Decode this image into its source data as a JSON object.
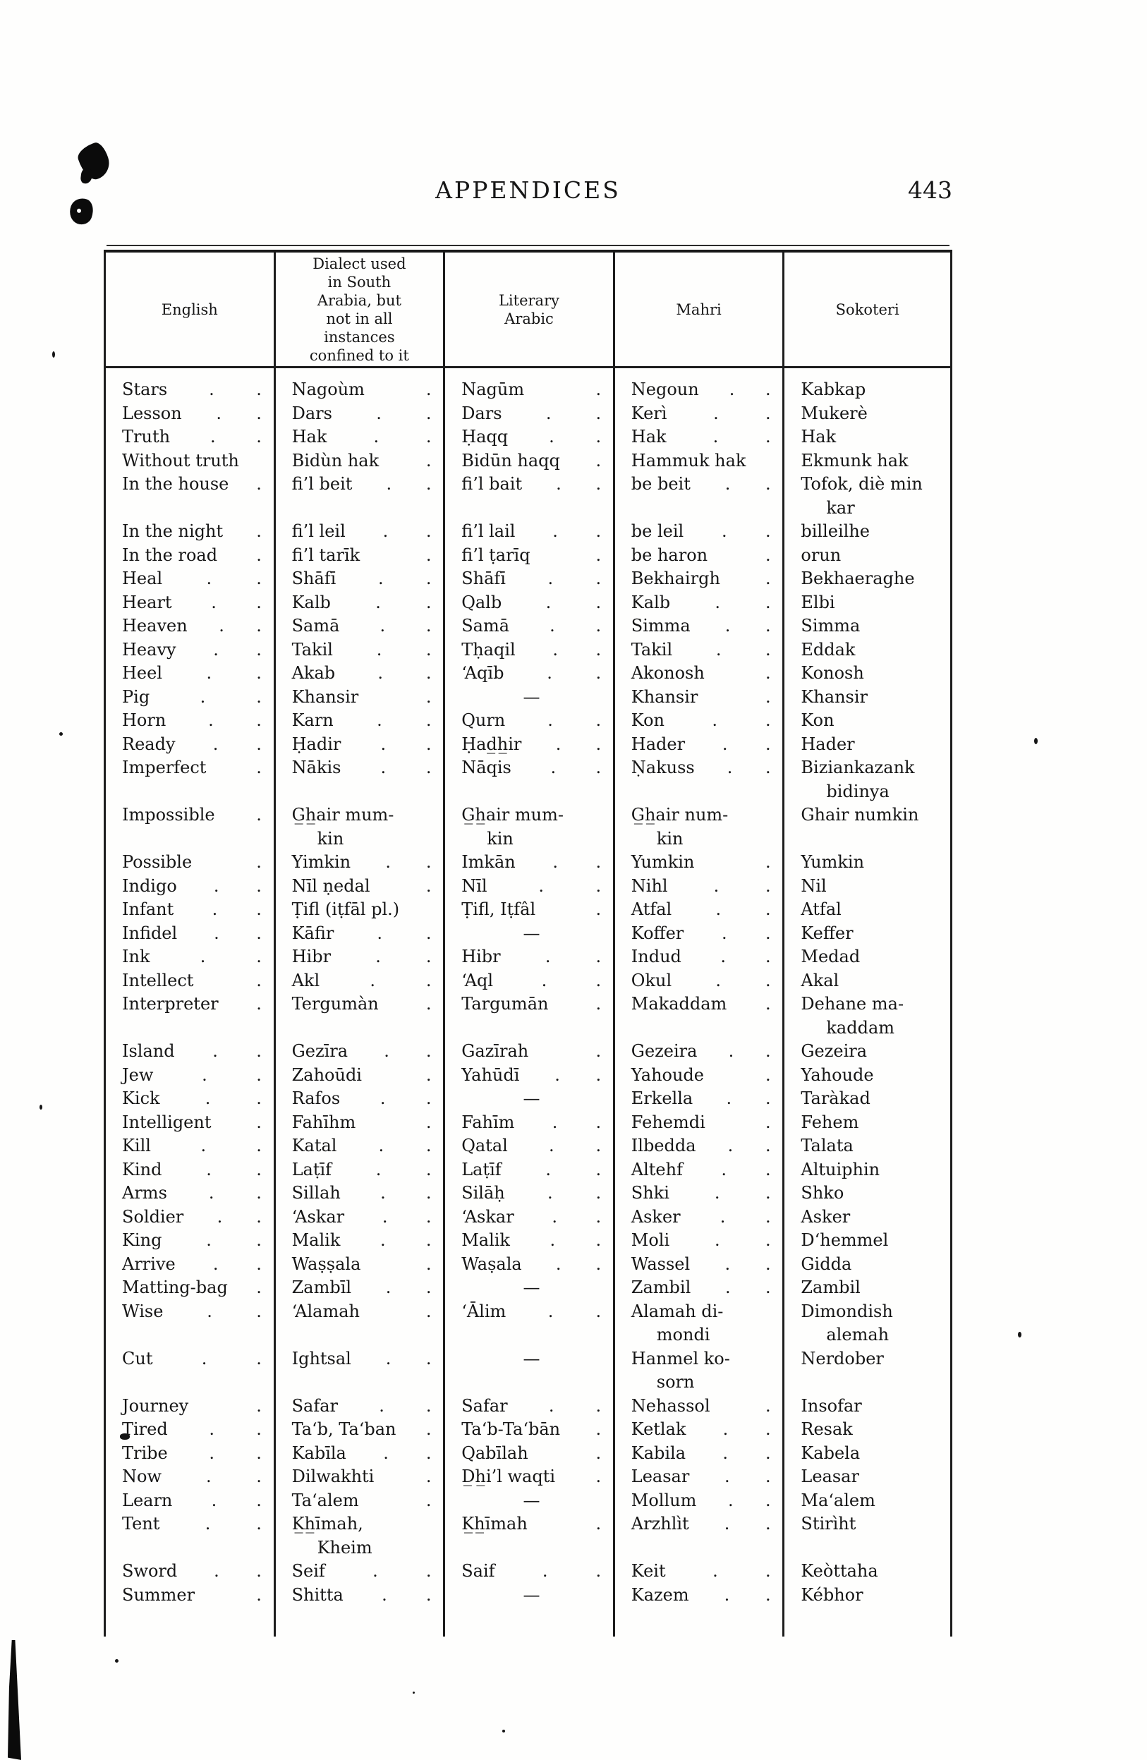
{
  "page": {
    "title": "APPENDICES",
    "page_number": "443"
  },
  "table": {
    "headers": [
      "English",
      "Dialect used in South Arabia, but not in all instances confined to it",
      "Literary Arabic",
      "Mahri",
      "Sokoteri"
    ],
    "rows": [
      [
        {
          "t": "Stars",
          "d": 2
        },
        {
          "t": "Nagoùm",
          "d": 1
        },
        {
          "t": "Nagūm",
          "d": 1
        },
        {
          "t": "Negoun",
          "d": 2
        },
        {
          "t": "Kabkap"
        }
      ],
      [
        {
          "t": "Lesson",
          "d": 2
        },
        {
          "t": "Dars",
          "d": 2
        },
        {
          "t": "Dars",
          "d": 2
        },
        {
          "t": "Kerì",
          "d": 2
        },
        {
          "t": "Mukerè"
        }
      ],
      [
        {
          "t": "Truth",
          "d": 2
        },
        {
          "t": "Hak",
          "d": 2
        },
        {
          "t": "Ḥaqq",
          "d": 2
        },
        {
          "t": "Hak",
          "d": 2
        },
        {
          "t": "Hak"
        }
      ],
      [
        {
          "t": "Without truth"
        },
        {
          "t": "Bidùn hak",
          "d": 1
        },
        {
          "t": "Bidūn haqq",
          "d": 1
        },
        {
          "t": "Hammuk hak"
        },
        {
          "t": "Ekmunk hak"
        }
      ],
      [
        {
          "t": "In the house",
          "d": 1
        },
        {
          "t": "fi’l beit",
          "d": 2
        },
        {
          "t": "fi’l bait",
          "d": 2
        },
        {
          "t": "be beit",
          "d": 2
        },
        {
          "t": "Tofok, diè min",
          "w": "kar"
        }
      ],
      [
        {
          "t": "In the night",
          "d": 1
        },
        {
          "t": "fi’l leil",
          "d": 2
        },
        {
          "t": "fi’l lail",
          "d": 2
        },
        {
          "t": "be leil",
          "d": 2
        },
        {
          "t": "billeilhe"
        }
      ],
      [
        {
          "t": "In the road",
          "d": 1
        },
        {
          "t": "fi’l tarīk",
          "d": 1
        },
        {
          "t": "fi’l ṭarīq",
          "d": 1
        },
        {
          "t": "be haron",
          "d": 1
        },
        {
          "t": "orun"
        }
      ],
      [
        {
          "t": "Heal",
          "d": 2
        },
        {
          "t": "Shāfī",
          "d": 2
        },
        {
          "t": "Shāfī",
          "d": 2
        },
        {
          "t": "Bekhairgh",
          "d": 1
        },
        {
          "t": "Bekhaeraghe"
        }
      ],
      [
        {
          "t": "Heart",
          "d": 2
        },
        {
          "t": "Kalb",
          "d": 2
        },
        {
          "t": "Qalb",
          "d": 2
        },
        {
          "t": "Kalb",
          "d": 2
        },
        {
          "t": "Elbi"
        }
      ],
      [
        {
          "t": "Heaven",
          "d": 2
        },
        {
          "t": "Samā",
          "d": 2
        },
        {
          "t": "Samā",
          "d": 2
        },
        {
          "t": "Simma",
          "d": 2
        },
        {
          "t": "Simma"
        }
      ],
      [
        {
          "t": "Heavy",
          "d": 2
        },
        {
          "t": "Takil",
          "d": 2
        },
        {
          "t": "Tḥaqil",
          "d": 2
        },
        {
          "t": "Takil",
          "d": 2
        },
        {
          "t": "Eddak"
        }
      ],
      [
        {
          "t": "Heel",
          "d": 2
        },
        {
          "t": "Akab",
          "d": 2
        },
        {
          "t": "‘Aqīb",
          "d": 2
        },
        {
          "t": "Akonosh",
          "d": 1
        },
        {
          "t": "Konosh"
        }
      ],
      [
        {
          "t": "Pig",
          "d": 2
        },
        {
          "t": "Khansir",
          "d": 1
        },
        {
          "t": "—",
          "c": 1
        },
        {
          "t": "Khansir",
          "d": 1
        },
        {
          "t": "Khansir"
        }
      ],
      [
        {
          "t": "Horn",
          "d": 2
        },
        {
          "t": "Karn",
          "d": 2
        },
        {
          "t": "Qurn",
          "d": 2
        },
        {
          "t": "Kon",
          "d": 2
        },
        {
          "t": "Kon"
        }
      ],
      [
        {
          "t": "Ready",
          "d": 2
        },
        {
          "t": "Ḥadir",
          "d": 2
        },
        {
          "t": "Ḥad̲h̲ir",
          "d": 2
        },
        {
          "t": "Hader",
          "d": 2
        },
        {
          "t": "Hader"
        }
      ],
      [
        {
          "t": "Imperfect",
          "d": 1
        },
        {
          "t": "Nākis",
          "d": 2
        },
        {
          "t": "Nāqis",
          "d": 2
        },
        {
          "t": "Ṇakuss",
          "d": 2
        },
        {
          "t": "Biziankazank",
          "w": "bidinya"
        }
      ],
      [
        {
          "t": "Impossible",
          "d": 1
        },
        {
          "t": "G̲h̲air mum-",
          "w": "kin"
        },
        {
          "t": "G̲h̲air mum-",
          "w": "kin"
        },
        {
          "t": "G̲h̲air num-",
          "w": "kin"
        },
        {
          "t": "Ghair numkin"
        }
      ],
      [
        {
          "t": "Possible",
          "d": 1
        },
        {
          "t": "Yimkin",
          "d": 2
        },
        {
          "t": "Imkān",
          "d": 2
        },
        {
          "t": "Yumkin",
          "d": 1
        },
        {
          "t": "Yumkin"
        }
      ],
      [
        {
          "t": "Indigo",
          "d": 2
        },
        {
          "t": "Nīl ṇedal",
          "d": 1
        },
        {
          "t": "Nīl",
          "d": 2
        },
        {
          "t": "Nihl",
          "d": 2
        },
        {
          "t": "Nil"
        }
      ],
      [
        {
          "t": "Infant",
          "d": 2
        },
        {
          "t": "Ṭifl (iṭfāl pl.)"
        },
        {
          "t": "Ṭifl, Iṭfâl",
          "d": 1
        },
        {
          "t": "Atfal",
          "d": 2
        },
        {
          "t": "Atfal"
        }
      ],
      [
        {
          "t": "Infidel",
          "d": 2
        },
        {
          "t": "Kāfir",
          "d": 2
        },
        {
          "t": "—",
          "c": 1
        },
        {
          "t": "Koffer",
          "d": 2
        },
        {
          "t": "Keffer"
        }
      ],
      [
        {
          "t": "Ink",
          "d": 2
        },
        {
          "t": "Hibr",
          "d": 2
        },
        {
          "t": "Hibr",
          "d": 2
        },
        {
          "t": "Indud",
          "d": 2
        },
        {
          "t": "Medad"
        }
      ],
      [
        {
          "t": "Intellect",
          "d": 1
        },
        {
          "t": "Akl",
          "d": 2
        },
        {
          "t": "‘Aql",
          "d": 2
        },
        {
          "t": "Okul",
          "d": 2
        },
        {
          "t": "Akal"
        }
      ],
      [
        {
          "t": "Interpreter",
          "d": 1
        },
        {
          "t": "Tergumàn",
          "d": 1
        },
        {
          "t": "Targumān",
          "d": 1
        },
        {
          "t": "Makaddam",
          "d": 1
        },
        {
          "t": "Dehane ma-",
          "w": "kaddam"
        }
      ],
      [
        {
          "t": "Island",
          "d": 2
        },
        {
          "t": "Gezīra",
          "d": 2
        },
        {
          "t": "Gazīrah",
          "d": 1
        },
        {
          "t": "Gezeira",
          "d": 2
        },
        {
          "t": "Gezeira"
        }
      ],
      [
        {
          "t": "Jew",
          "d": 2
        },
        {
          "t": "Zahoūdi",
          "d": 1
        },
        {
          "t": "Yahūdī",
          "d": 2
        },
        {
          "t": "Yahoude",
          "d": 1
        },
        {
          "t": "Yahoude"
        }
      ],
      [
        {
          "t": "Kick",
          "d": 2
        },
        {
          "t": "Rafos",
          "d": 2
        },
        {
          "t": "—",
          "c": 1
        },
        {
          "t": "Erkella",
          "d": 2
        },
        {
          "t": "Taràkad"
        }
      ],
      [
        {
          "t": "Intelligent",
          "d": 1
        },
        {
          "t": "Fahīhm",
          "d": 1
        },
        {
          "t": "Fahīm",
          "d": 2
        },
        {
          "t": "Fehemdi",
          "d": 1
        },
        {
          "t": "Fehem"
        }
      ],
      [
        {
          "t": "Kill",
          "d": 2
        },
        {
          "t": "Katal",
          "d": 2
        },
        {
          "t": "Qatal",
          "d": 2
        },
        {
          "t": "Ilbedda",
          "d": 2
        },
        {
          "t": "Talata"
        }
      ],
      [
        {
          "t": "Kind",
          "d": 2
        },
        {
          "t": "Laṭīf",
          "d": 2
        },
        {
          "t": "Laṭīf",
          "d": 2
        },
        {
          "t": "Altehf",
          "d": 2
        },
        {
          "t": "Altuiphin"
        }
      ],
      [
        {
          "t": "Arms",
          "d": 2
        },
        {
          "t": "Sillah",
          "d": 2
        },
        {
          "t": "Silāḥ",
          "d": 2
        },
        {
          "t": "Shki",
          "d": 2
        },
        {
          "t": "Shko"
        }
      ],
      [
        {
          "t": "Soldier",
          "d": 2
        },
        {
          "t": "‘Askar",
          "d": 2
        },
        {
          "t": "‘Askar",
          "d": 2
        },
        {
          "t": "Asker",
          "d": 2
        },
        {
          "t": "Asker"
        }
      ],
      [
        {
          "t": "King",
          "d": 2
        },
        {
          "t": "Malik",
          "d": 2
        },
        {
          "t": "Malik",
          "d": 2
        },
        {
          "t": "Moli",
          "d": 2
        },
        {
          "t": "D‘hemmel"
        }
      ],
      [
        {
          "t": "Arrive",
          "d": 2
        },
        {
          "t": "Waṣṣala",
          "d": 1
        },
        {
          "t": "Waṣala",
          "d": 2
        },
        {
          "t": "Wassel",
          "d": 2
        },
        {
          "t": "Gidda"
        }
      ],
      [
        {
          "t": "Matting-bag",
          "d": 1
        },
        {
          "t": "Zambīl",
          "d": 2
        },
        {
          "t": "—",
          "c": 1
        },
        {
          "t": "Zambil",
          "d": 2
        },
        {
          "t": "Zambil"
        }
      ],
      [
        {
          "t": "Wise",
          "d": 2
        },
        {
          "t": "‘Alamah",
          "d": 1
        },
        {
          "t": "‘Ālim",
          "d": 2
        },
        {
          "t": "Alamah di-",
          "w": "mondi"
        },
        {
          "t": "Dimondish",
          "w": "alemah"
        }
      ],
      [
        {
          "t": "Cut",
          "d": 2
        },
        {
          "t": "Ightsal",
          "d": 2
        },
        {
          "t": "—",
          "c": 1
        },
        {
          "t": "Hanmel ko-",
          "w": "sorn"
        },
        {
          "t": "Nerdober"
        }
      ],
      [
        {
          "t": "Journey",
          "d": 1
        },
        {
          "t": "Safar",
          "d": 2
        },
        {
          "t": "Safar",
          "d": 2
        },
        {
          "t": "Nehassol",
          "d": 1
        },
        {
          "t": "Insofar"
        }
      ],
      [
        {
          "t": "Tired",
          "d": 2
        },
        {
          "t": "Ta‘b, Ta‘ban",
          "d": 1
        },
        {
          "t": "Ta‘b-Ta‘bān",
          "d": 1
        },
        {
          "t": "Ketlak",
          "d": 2
        },
        {
          "t": "Resak"
        }
      ],
      [
        {
          "t": "Tribe",
          "d": 2
        },
        {
          "t": "Kabīla",
          "d": 2
        },
        {
          "t": "Qabīlah",
          "d": 1
        },
        {
          "t": "Kabila",
          "d": 2
        },
        {
          "t": "Kabela"
        }
      ],
      [
        {
          "t": "Now",
          "d": 2
        },
        {
          "t": "Dilwakhti",
          "d": 1
        },
        {
          "t": "D̲h̲i’l waqti",
          "d": 1
        },
        {
          "t": "Leasar",
          "d": 2
        },
        {
          "t": "Leasar"
        }
      ],
      [
        {
          "t": "Learn",
          "d": 2
        },
        {
          "t": "Ta‘alem",
          "d": 1
        },
        {
          "t": "—",
          "c": 1
        },
        {
          "t": "Mollum",
          "d": 2
        },
        {
          "t": "Ma‘alem"
        }
      ],
      [
        {
          "t": "Tent",
          "d": 2
        },
        {
          "t": "K̲h̲īmah,",
          "w": "Kheim"
        },
        {
          "t": "K̲h̲īmah",
          "d": 1
        },
        {
          "t": "Arzhlìt",
          "d": 2
        },
        {
          "t": "Stirìht"
        }
      ],
      [
        {
          "t": "Sword",
          "d": 2
        },
        {
          "t": "Seif",
          "d": 2
        },
        {
          "t": "Saif",
          "d": 2
        },
        {
          "t": "Keit",
          "d": 2
        },
        {
          "t": "Keòttaha"
        }
      ],
      [
        {
          "t": "Summer",
          "d": 1
        },
        {
          "t": "Shitta",
          "d": 2
        },
        {
          "t": "—",
          "c": 1
        },
        {
          "t": "Kazem",
          "d": 2
        },
        {
          "t": "Kébhor"
        }
      ]
    ]
  }
}
